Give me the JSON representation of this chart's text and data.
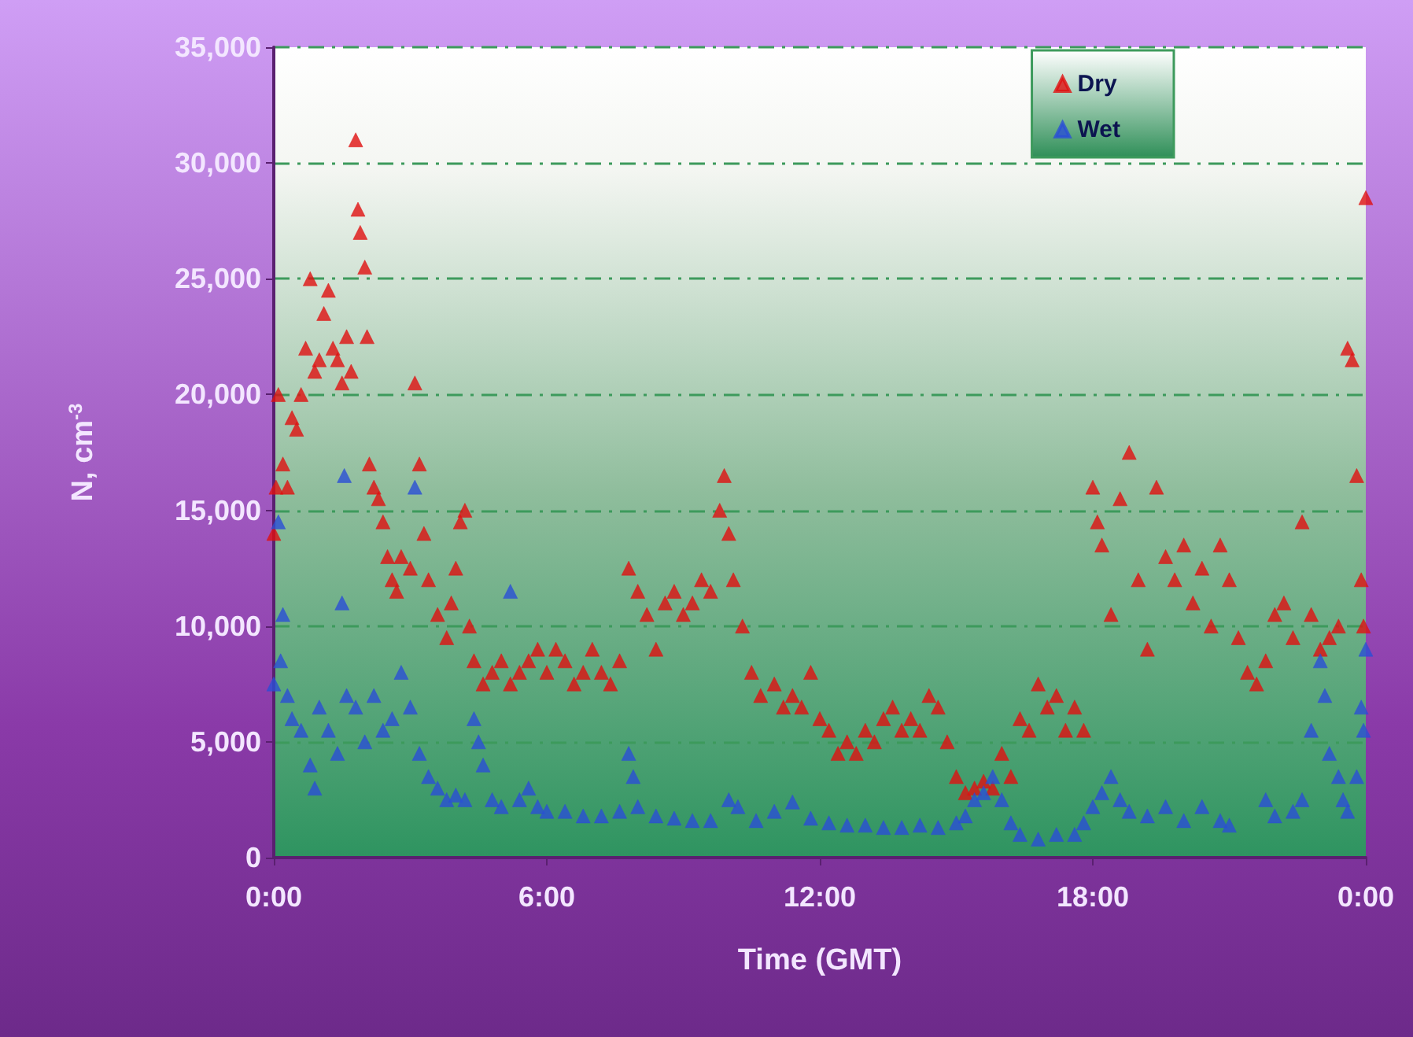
{
  "chart_data": {
    "type": "scatter",
    "xlabel": "Time (GMT)",
    "ylabel": "N, cm$^{-3}$",
    "xlim": [
      0,
      24
    ],
    "xticks": [
      {
        "value": 0,
        "label": "0:00"
      },
      {
        "value": 6,
        "label": "6:00"
      },
      {
        "value": 12,
        "label": "12:00"
      },
      {
        "value": 18,
        "label": "18:00"
      },
      {
        "value": 24,
        "label": "0:00"
      }
    ],
    "ylim": [
      0,
      35000
    ],
    "yticks": [
      0,
      {
        "value": 5000,
        "label": "5,000"
      },
      {
        "value": 10000,
        "label": "10,000"
      },
      {
        "value": 15000,
        "label": "15,000"
      },
      {
        "value": 20000,
        "label": "20,000"
      },
      {
        "value": 25000,
        "label": "25,000"
      },
      {
        "value": 30000,
        "label": "30,000"
      },
      {
        "value": 35000,
        "label": "35,000"
      }
    ],
    "grid": "y",
    "legend": "top right",
    "marker": "triangle",
    "series": [
      {
        "name": "Dry",
        "color": "#e01010",
        "x": [
          0,
          0.05,
          0.1,
          0.2,
          0.3,
          0.4,
          0.5,
          0.6,
          0.7,
          0.8,
          0.9,
          1.0,
          1.1,
          1.2,
          1.3,
          1.4,
          1.5,
          1.6,
          1.7,
          1.8,
          1.85,
          1.9,
          2.0,
          2.05,
          2.1,
          2.2,
          2.3,
          2.4,
          2.5,
          2.6,
          2.7,
          2.8,
          3.0,
          3.1,
          3.2,
          3.3,
          3.4,
          3.6,
          3.8,
          3.9,
          4.0,
          4.1,
          4.2,
          4.3,
          4.4,
          4.6,
          4.8,
          5.0,
          5.2,
          5.4,
          5.6,
          5.8,
          6.0,
          6.2,
          6.4,
          6.6,
          6.8,
          7.0,
          7.2,
          7.4,
          7.6,
          7.8,
          8.0,
          8.2,
          8.4,
          8.6,
          8.8,
          9.0,
          9.2,
          9.4,
          9.6,
          9.8,
          9.9,
          10.0,
          10.1,
          10.3,
          10.5,
          10.7,
          11.0,
          11.2,
          11.4,
          11.6,
          11.8,
          12.0,
          12.2,
          12.4,
          12.6,
          12.8,
          13.0,
          13.2,
          13.4,
          13.6,
          13.8,
          14.0,
          14.2,
          14.4,
          14.6,
          14.8,
          15.0,
          15.2,
          15.4,
          15.6,
          15.8,
          16.0,
          16.2,
          16.4,
          16.6,
          16.8,
          17.0,
          17.2,
          17.4,
          17.6,
          17.8,
          18.0,
          18.1,
          18.2,
          18.4,
          18.6,
          18.8,
          19.0,
          19.2,
          19.4,
          19.6,
          19.8,
          20.0,
          20.2,
          20.4,
          20.6,
          20.8,
          21.0,
          21.2,
          21.4,
          21.6,
          21.8,
          22.0,
          22.2,
          22.4,
          22.6,
          22.8,
          23.0,
          23.2,
          23.4,
          23.6,
          23.7,
          23.8,
          23.9,
          23.95,
          24.0
        ],
        "values": [
          14000,
          16000,
          20000,
          17000,
          16000,
          19000,
          18500,
          20000,
          22000,
          25000,
          21000,
          21500,
          23500,
          24500,
          22000,
          21500,
          20500,
          22500,
          21000,
          31000,
          28000,
          27000,
          25500,
          22500,
          17000,
          16000,
          15500,
          14500,
          13000,
          12000,
          11500,
          13000,
          12500,
          20500,
          17000,
          14000,
          12000,
          10500,
          9500,
          11000,
          12500,
          14500,
          15000,
          10000,
          8500,
          7500,
          8000,
          8500,
          7500,
          8000,
          8500,
          9000,
          8000,
          9000,
          8500,
          7500,
          8000,
          9000,
          8000,
          7500,
          8500,
          12500,
          11500,
          10500,
          9000,
          11000,
          11500,
          10500,
          11000,
          12000,
          11500,
          15000,
          16500,
          14000,
          12000,
          10000,
          8000,
          7000,
          7500,
          6500,
          7000,
          6500,
          8000,
          6000,
          5500,
          4500,
          5000,
          4500,
          5500,
          5000,
          6000,
          6500,
          5500,
          6000,
          5500,
          7000,
          6500,
          5000,
          3500,
          2800,
          3000,
          3300,
          3000,
          4500,
          3500,
          6000,
          5500,
          7500,
          6500,
          7000,
          5500,
          6500,
          5500,
          16000,
          14500,
          13500,
          10500,
          15500,
          17500,
          12000,
          9000,
          16000,
          13000,
          12000,
          13500,
          11000,
          12500,
          10000,
          13500,
          12000,
          9500,
          8000,
          7500,
          8500,
          10500,
          11000,
          9500,
          14500,
          10500,
          9000,
          9500,
          10000,
          22000,
          21500,
          16500,
          12000,
          10000,
          28500
        ]
      },
      {
        "name": "Wet",
        "color": "#2a4fd6",
        "x": [
          0,
          0.1,
          0.15,
          0.2,
          0.3,
          0.4,
          0.6,
          0.8,
          0.9,
          1.0,
          1.2,
          1.4,
          1.5,
          1.55,
          1.6,
          1.8,
          2.0,
          2.2,
          2.4,
          2.6,
          2.8,
          3.0,
          3.1,
          3.2,
          3.4,
          3.6,
          3.8,
          4.0,
          4.2,
          4.4,
          4.5,
          4.6,
          4.8,
          5.0,
          5.2,
          5.4,
          5.6,
          5.8,
          6.0,
          6.4,
          6.8,
          7.2,
          7.6,
          7.8,
          7.9,
          8.0,
          8.4,
          8.8,
          9.2,
          9.6,
          10.0,
          10.2,
          10.6,
          11.0,
          11.4,
          11.8,
          12.2,
          12.6,
          13.0,
          13.4,
          13.8,
          14.2,
          14.6,
          15.0,
          15.2,
          15.4,
          15.6,
          15.8,
          16.0,
          16.2,
          16.4,
          16.8,
          17.2,
          17.6,
          17.8,
          18.0,
          18.2,
          18.4,
          18.6,
          18.8,
          19.2,
          19.6,
          20.0,
          20.4,
          20.8,
          21.0,
          21.8,
          22.0,
          22.4,
          22.6,
          22.8,
          23.0,
          23.1,
          23.2,
          23.4,
          23.5,
          23.6,
          23.8,
          23.9,
          23.95,
          24.0
        ],
        "values": [
          7500,
          14500,
          8500,
          10500,
          7000,
          6000,
          5500,
          4000,
          3000,
          6500,
          5500,
          4500,
          11000,
          16500,
          7000,
          6500,
          5000,
          7000,
          5500,
          6000,
          8000,
          6500,
          16000,
          4500,
          3500,
          3000,
          2500,
          2700,
          2500,
          6000,
          5000,
          4000,
          2500,
          2200,
          11500,
          2500,
          3000,
          2200,
          2000,
          2000,
          1800,
          1800,
          2000,
          4500,
          3500,
          2200,
          1800,
          1700,
          1600,
          1600,
          2500,
          2200,
          1600,
          2000,
          2400,
          1700,
          1500,
          1400,
          1400,
          1300,
          1300,
          1400,
          1300,
          1500,
          1800,
          2500,
          2800,
          3500,
          2500,
          1500,
          1000,
          800,
          1000,
          1000,
          1500,
          2200,
          2800,
          3500,
          2500,
          2000,
          1800,
          2200,
          1600,
          2200,
          1600,
          1400,
          2500,
          1800,
          2000,
          2500,
          5500,
          8500,
          7000,
          4500,
          3500,
          2500,
          2000,
          3500,
          6500,
          5500,
          9000
        ]
      }
    ]
  }
}
